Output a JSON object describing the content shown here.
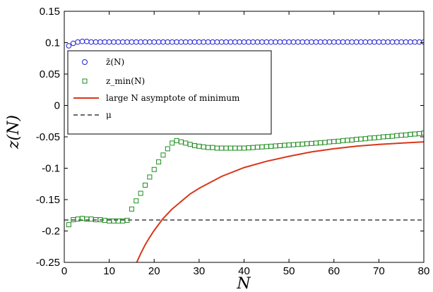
{
  "chart_data": {
    "type": "scatter",
    "xlabel": "N",
    "ylabel": "z(N)",
    "xlim": [
      0,
      80
    ],
    "ylim": [
      -0.25,
      0.15
    ],
    "x_ticks": [
      "0",
      "10",
      "20",
      "30",
      "40",
      "50",
      "60",
      "70",
      "80"
    ],
    "y_ticks": [
      "0.15",
      "0.1",
      "0.05",
      "0",
      "-0.05",
      "-0.1",
      "-0.15",
      "-0.2",
      "-0.25"
    ],
    "grid": false,
    "legend_position": "upper-left",
    "series": [
      {
        "name": "z̄(N)",
        "kind": "circle-markers",
        "color": "#1f1fd6",
        "x": [
          1,
          2,
          3,
          4,
          5,
          6,
          7,
          8,
          9,
          10,
          11,
          12,
          13,
          14,
          15,
          16,
          17,
          18,
          19,
          20,
          21,
          22,
          23,
          24,
          25,
          26,
          27,
          28,
          29,
          30,
          31,
          32,
          33,
          34,
          35,
          36,
          37,
          38,
          39,
          40,
          41,
          42,
          43,
          44,
          45,
          46,
          47,
          48,
          49,
          50,
          51,
          52,
          53,
          54,
          55,
          56,
          57,
          58,
          59,
          60,
          61,
          62,
          63,
          64,
          65,
          66,
          67,
          68,
          69,
          70,
          71,
          72,
          73,
          74,
          75,
          76,
          77,
          78,
          79,
          80
        ],
        "y": [
          0.095,
          0.099,
          0.101,
          0.102,
          0.102,
          0.101,
          0.101,
          0.101,
          0.101,
          0.101,
          0.101,
          0.101,
          0.101,
          0.101,
          0.101,
          0.101,
          0.101,
          0.101,
          0.101,
          0.101,
          0.101,
          0.101,
          0.101,
          0.101,
          0.101,
          0.101,
          0.101,
          0.101,
          0.101,
          0.101,
          0.101,
          0.101,
          0.101,
          0.101,
          0.101,
          0.101,
          0.101,
          0.101,
          0.101,
          0.101,
          0.101,
          0.101,
          0.101,
          0.101,
          0.101,
          0.101,
          0.101,
          0.101,
          0.101,
          0.101,
          0.101,
          0.101,
          0.101,
          0.101,
          0.101,
          0.101,
          0.101,
          0.101,
          0.101,
          0.101,
          0.101,
          0.101,
          0.101,
          0.101,
          0.101,
          0.101,
          0.101,
          0.101,
          0.101,
          0.101,
          0.101,
          0.101,
          0.101,
          0.101,
          0.101,
          0.101,
          0.101,
          0.101,
          0.101,
          0.101
        ]
      },
      {
        "name": "z_min(N)",
        "kind": "square-markers",
        "color": "#1e8c1e",
        "x": [
          1,
          2,
          3,
          4,
          5,
          6,
          7,
          8,
          9,
          10,
          11,
          12,
          13,
          14,
          15,
          16,
          17,
          18,
          19,
          20,
          21,
          22,
          23,
          24,
          25,
          26,
          27,
          28,
          29,
          30,
          31,
          32,
          33,
          34,
          35,
          36,
          37,
          38,
          39,
          40,
          41,
          42,
          43,
          44,
          45,
          46,
          47,
          48,
          49,
          50,
          51,
          52,
          53,
          54,
          55,
          56,
          57,
          58,
          59,
          60,
          61,
          62,
          63,
          64,
          65,
          66,
          67,
          68,
          69,
          70,
          71,
          72,
          73,
          74,
          75,
          76,
          77,
          78,
          79,
          80
        ],
        "y": [
          -0.19,
          -0.182,
          -0.181,
          -0.18,
          -0.181,
          -0.181,
          -0.182,
          -0.182,
          -0.183,
          -0.184,
          -0.184,
          -0.184,
          -0.184,
          -0.183,
          -0.165,
          -0.152,
          -0.14,
          -0.127,
          -0.114,
          -0.102,
          -0.09,
          -0.079,
          -0.069,
          -0.06,
          -0.056,
          -0.058,
          -0.06,
          -0.062,
          -0.064,
          -0.065,
          -0.066,
          -0.067,
          -0.067,
          -0.068,
          -0.068,
          -0.068,
          -0.068,
          -0.068,
          -0.068,
          -0.068,
          -0.0675,
          -0.067,
          -0.0665,
          -0.066,
          -0.0655,
          -0.065,
          -0.0645,
          -0.064,
          -0.0635,
          -0.063,
          -0.0625,
          -0.062,
          -0.0615,
          -0.061,
          -0.0605,
          -0.06,
          -0.0595,
          -0.059,
          -0.058,
          -0.0575,
          -0.057,
          -0.056,
          -0.0555,
          -0.055,
          -0.054,
          -0.0535,
          -0.053,
          -0.052,
          -0.0515,
          -0.051,
          -0.05,
          -0.0495,
          -0.049,
          -0.048,
          -0.0475,
          -0.047,
          -0.046,
          -0.0455,
          -0.045,
          -0.044
        ]
      },
      {
        "name": "large N asymptote of minimum",
        "kind": "line",
        "color": "#d9361a",
        "x": [
          16,
          17,
          18,
          19,
          20,
          22,
          24,
          26,
          28,
          30,
          35,
          40,
          45,
          50,
          55,
          60,
          65,
          70,
          75,
          80
        ],
        "y": [
          -0.252,
          -0.236,
          -0.222,
          -0.21,
          -0.199,
          -0.18,
          -0.165,
          -0.153,
          -0.141,
          -0.132,
          -0.113,
          -0.099,
          -0.089,
          -0.081,
          -0.074,
          -0.069,
          -0.065,
          -0.062,
          -0.06,
          -0.058
        ]
      },
      {
        "name": "μ",
        "kind": "dashed-line",
        "color": "#6b6b6b",
        "x": [
          0,
          80
        ],
        "y": [
          -0.1825,
          -0.1825
        ]
      }
    ]
  }
}
